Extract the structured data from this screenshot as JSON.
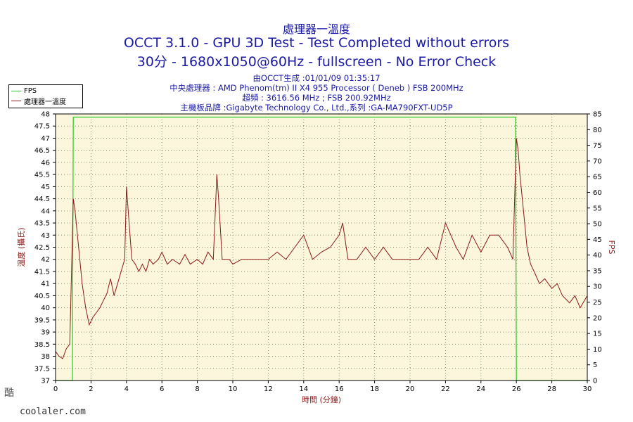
{
  "chart_data": {
    "type": "line",
    "title": "處理器一溫度",
    "subtitle_lines": [
      "OCCT 3.1.0 - GPU 3D Test - Test Completed without errors",
      "30分 - 1680x1050@60Hz - fullscreen - No Error Check"
    ],
    "info_lines": [
      "由OCCT生成 :01/01/09 01:35:17",
      "中央處理器 : AMD Phenom(tm) II X4 955 Processor ( Deneb ) FSB 200MHz",
      "超頻 : 3616.56 MHz ; FSB 200.92MHz",
      "主機板品牌 :Gigabyte Technology Co., Ltd.,系列 :GA-MA790FXT-UD5P"
    ],
    "xlabel": "時間 (分鐘)",
    "ylabel": "溫度 (攝氏)",
    "y2label": "FPS",
    "xlim": [
      0,
      30
    ],
    "ylim": [
      37,
      48
    ],
    "y2lim": [
      0,
      85
    ],
    "x_ticks": [
      "0",
      "2",
      "4",
      "6",
      "8",
      "10",
      "12",
      "14",
      "16",
      "18",
      "20",
      "22",
      "24",
      "26",
      "28",
      "30"
    ],
    "y_ticks": [
      "37",
      "37.5",
      "38",
      "38.5",
      "39",
      "39.5",
      "40",
      "40.5",
      "41",
      "41.5",
      "42",
      "42.5",
      "43",
      "43.5",
      "44",
      "44.5",
      "45",
      "45.5",
      "46",
      "46.5",
      "47",
      "47.5",
      "48"
    ],
    "y2_ticks": [
      "0",
      "5",
      "10",
      "15",
      "20",
      "25",
      "30",
      "35",
      "40",
      "45",
      "50",
      "55",
      "60",
      "65",
      "70",
      "75",
      "80",
      "85"
    ],
    "grid": true,
    "legend_position": "top-left, outside plot",
    "colors": {
      "temperature": "#8b1a1a",
      "fps": "#22cc22",
      "plot_background": "#fbf6dc",
      "grid": "#8a8a5a",
      "title": "#1a1aa6",
      "axis_label": "#8b1a1a"
    },
    "series": [
      {
        "name": "處理器一溫度",
        "axis": "left",
        "x": [
          0,
          0.2,
          0.4,
          0.6,
          0.8,
          1.0,
          1.1,
          1.3,
          1.5,
          1.7,
          1.9,
          2.1,
          2.3,
          2.5,
          2.7,
          2.9,
          3.1,
          3.3,
          3.5,
          3.7,
          3.9,
          4.0,
          4.1,
          4.3,
          4.5,
          4.7,
          4.9,
          5.1,
          5.3,
          5.5,
          5.8,
          6.0,
          6.3,
          6.6,
          7.0,
          7.3,
          7.6,
          8.0,
          8.3,
          8.6,
          8.9,
          9.1,
          9.2,
          9.4,
          9.6,
          9.8,
          10.0,
          10.5,
          11.0,
          11.5,
          12.0,
          12.5,
          13.0,
          13.5,
          14.0,
          14.5,
          15.0,
          15.5,
          16.0,
          16.2,
          16.5,
          17.0,
          17.5,
          18.0,
          18.5,
          19.0,
          19.5,
          20.0,
          20.5,
          21.0,
          21.5,
          22.0,
          22.3,
          22.6,
          23.0,
          23.5,
          24.0,
          24.5,
          25.0,
          25.5,
          25.8,
          26.0,
          26.1,
          26.2,
          26.4,
          26.6,
          26.8,
          27.0,
          27.3,
          27.6,
          28.0,
          28.3,
          28.6,
          29.0,
          29.3,
          29.6,
          30.0
        ],
        "values": [
          38.2,
          38.0,
          37.9,
          38.3,
          38.5,
          44.5,
          44.0,
          42.5,
          41.0,
          40.0,
          39.3,
          39.6,
          39.8,
          40.0,
          40.3,
          40.6,
          41.2,
          40.5,
          41.0,
          41.5,
          42.0,
          45.0,
          44.0,
          42.0,
          41.8,
          41.5,
          41.8,
          41.5,
          42.0,
          41.8,
          42.0,
          42.3,
          41.8,
          42.0,
          41.8,
          42.2,
          41.8,
          42.0,
          41.8,
          42.3,
          42.0,
          45.5,
          44.5,
          42.0,
          42.0,
          42.0,
          41.8,
          42.0,
          42.0,
          42.0,
          42.0,
          42.3,
          42.0,
          42.5,
          43.0,
          42.0,
          42.3,
          42.5,
          43.0,
          43.5,
          42.0,
          42.0,
          42.5,
          42.0,
          42.5,
          42.0,
          42.0,
          42.0,
          42.0,
          42.5,
          42.0,
          43.5,
          43.0,
          42.5,
          42.0,
          43.0,
          42.3,
          43.0,
          43.0,
          42.5,
          42.0,
          47.0,
          46.5,
          45.5,
          44.0,
          42.5,
          41.8,
          41.5,
          41.0,
          41.2,
          40.8,
          41.0,
          40.5,
          40.2,
          40.5,
          40.0,
          40.5
        ]
      },
      {
        "name": "FPS",
        "axis": "right",
        "x": [
          0,
          0.95,
          1.0,
          1.05,
          2,
          4,
          6,
          8,
          10,
          12,
          14,
          16,
          18,
          20,
          22,
          24,
          25.95,
          26.0,
          26.05,
          30
        ],
        "values": [
          0,
          0,
          84,
          84,
          84,
          84,
          84,
          84,
          84,
          84,
          84,
          84,
          84,
          84,
          84,
          84,
          84,
          0,
          0,
          0
        ]
      }
    ]
  },
  "watermark": {
    "glyph": "酷",
    "site": "coolaler.com"
  }
}
